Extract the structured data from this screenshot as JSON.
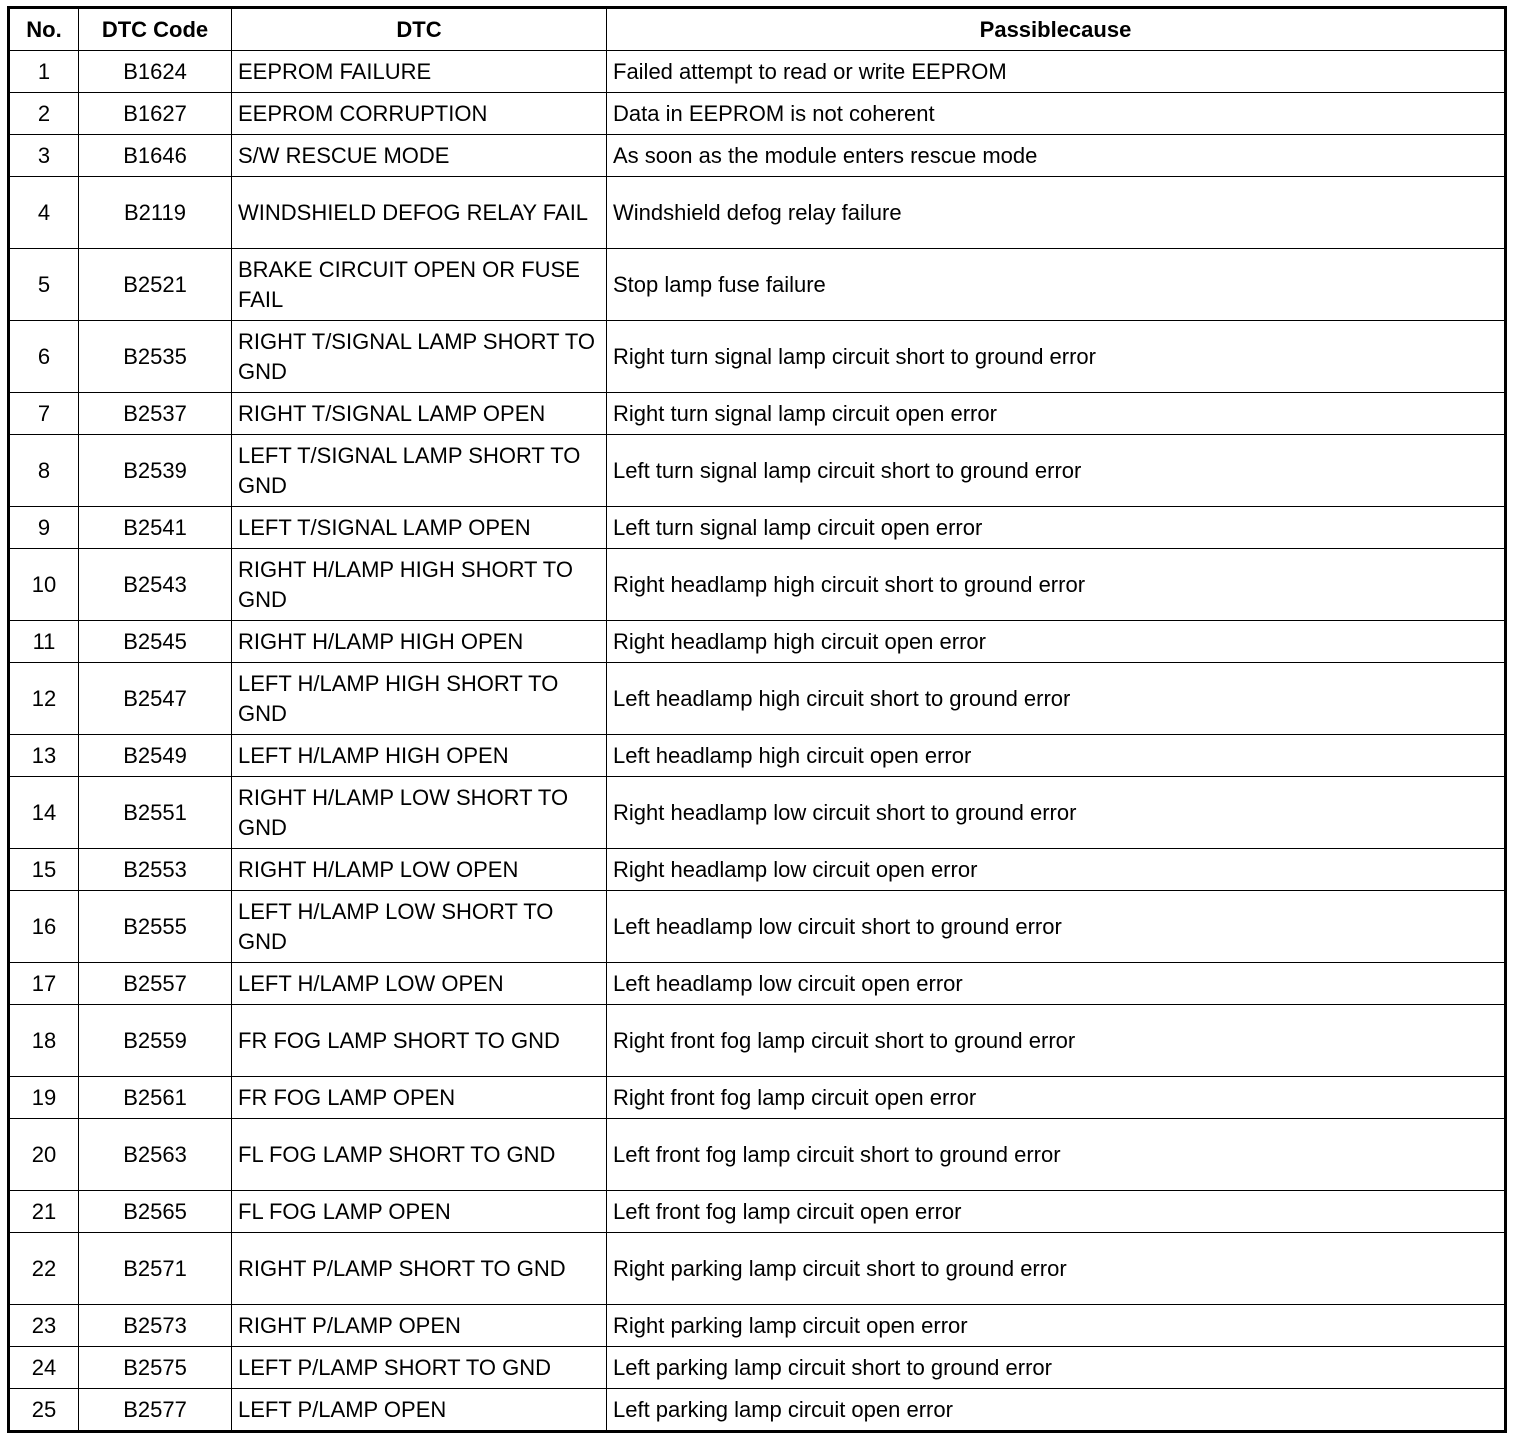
{
  "headers": [
    "No.",
    "DTC Code",
    "DTC",
    "Passiblecause"
  ],
  "rows": [
    [
      "1",
      "B1624",
      "EEPROM FAILURE",
      "Failed attempt to read or write EEPROM"
    ],
    [
      "2",
      "B1627",
      "EEPROM CORRUPTION",
      "Data in EEPROM is not coherent"
    ],
    [
      "3",
      "B1646",
      "S/W RESCUE MODE",
      "As soon as the module enters rescue mode"
    ],
    [
      "4",
      "B2119",
      "WINDSHIELD DEFOG RELAY FAIL",
      "Windshield defog relay failure"
    ],
    [
      "5",
      "B2521",
      "BRAKE CIRCUIT OPEN OR FUSE FAIL",
      "Stop lamp fuse failure"
    ],
    [
      "6",
      "B2535",
      "RIGHT T/SIGNAL LAMP SHORT TO GND",
      "Right turn signal lamp circuit short to ground error"
    ],
    [
      "7",
      "B2537",
      "RIGHT T/SIGNAL LAMP OPEN",
      "Right turn signal lamp circuit open error"
    ],
    [
      "8",
      "B2539",
      "LEFT T/SIGNAL LAMP SHORT TO GND",
      "Left turn signal lamp circuit short to ground error"
    ],
    [
      "9",
      "B2541",
      "LEFT T/SIGNAL LAMP OPEN",
      "Left turn signal lamp circuit open error"
    ],
    [
      "10",
      "B2543",
      "RIGHT H/LAMP HIGH SHORT TO GND",
      "Right headlamp high circuit short to ground error"
    ],
    [
      "11",
      "B2545",
      "RIGHT H/LAMP HIGH OPEN",
      "Right headlamp high circuit open error"
    ],
    [
      "12",
      "B2547",
      "LEFT H/LAMP HIGH SHORT TO GND",
      "Left headlamp high circuit short to ground error"
    ],
    [
      "13",
      "B2549",
      "LEFT H/LAMP HIGH OPEN",
      "Left headlamp high circuit open error"
    ],
    [
      "14",
      "B2551",
      "RIGHT H/LAMP LOW SHORT TO GND",
      "Right headlamp low circuit short to ground error"
    ],
    [
      "15",
      "B2553",
      "RIGHT H/LAMP LOW OPEN",
      "Right headlamp low circuit open error"
    ],
    [
      "16",
      "B2555",
      "LEFT H/LAMP LOW SHORT TO GND",
      "Left headlamp low circuit short to ground error"
    ],
    [
      "17",
      "B2557",
      "LEFT H/LAMP LOW OPEN",
      "Left headlamp low circuit open error"
    ],
    [
      "18",
      "B2559",
      "FR FOG LAMP SHORT TO GND",
      "Right front fog lamp circuit short to ground error"
    ],
    [
      "19",
      "B2561",
      "FR FOG LAMP OPEN",
      "Right front fog lamp circuit open error"
    ],
    [
      "20",
      "B2563",
      "FL FOG LAMP SHORT TO GND",
      "Left front fog lamp circuit short to ground error"
    ],
    [
      "21",
      "B2565",
      "FL FOG LAMP OPEN",
      "Left front fog lamp circuit open error"
    ],
    [
      "22",
      "B2571",
      "RIGHT P/LAMP SHORT TO GND",
      "Right parking lamp circuit short to ground error"
    ],
    [
      "23",
      "B2573",
      "RIGHT P/LAMP OPEN",
      "Right parking lamp circuit open error"
    ],
    [
      "24",
      "B2575",
      "LEFT P/LAMP SHORT TO GND",
      "Left parking lamp circuit short to ground error"
    ],
    [
      "25",
      "B2577",
      "LEFT P/LAMP OPEN",
      "Left parking lamp circuit open error"
    ]
  ]
}
